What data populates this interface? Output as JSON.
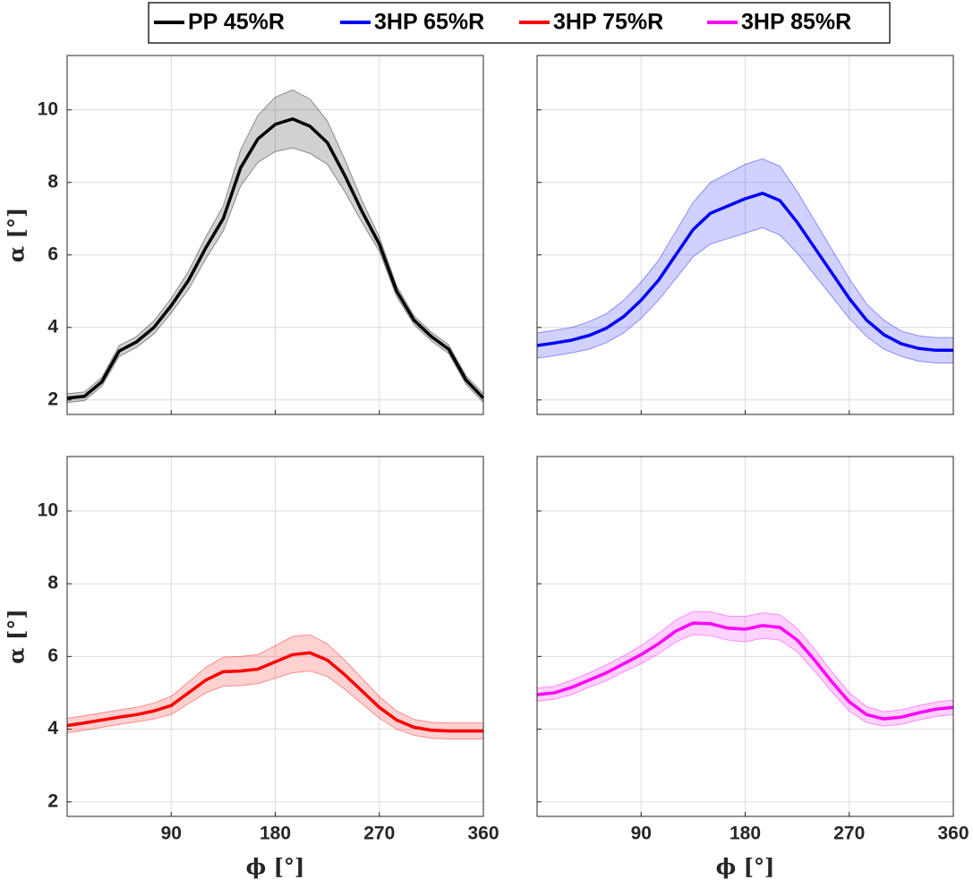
{
  "chart_data": [
    {
      "type": "line",
      "ylabel": "α [°]",
      "x": [
        0,
        15,
        30,
        45,
        60,
        75,
        90,
        105,
        120,
        135,
        150,
        165,
        180,
        195,
        210,
        225,
        240,
        255,
        270,
        285,
        300,
        315,
        330,
        345,
        360
      ],
      "series": [
        {
          "name": "PP 45%R",
          "color": "#000000",
          "values": [
            2.05,
            2.1,
            2.5,
            3.35,
            3.6,
            4.0,
            4.6,
            5.3,
            6.2,
            7.0,
            8.4,
            9.2,
            9.6,
            9.75,
            9.55,
            9.1,
            8.2,
            7.2,
            6.3,
            5.0,
            4.2,
            3.75,
            3.4,
            2.55,
            2.05
          ],
          "upper": [
            2.17,
            2.22,
            2.62,
            3.5,
            3.75,
            4.18,
            4.8,
            5.55,
            6.5,
            7.35,
            8.9,
            9.85,
            10.35,
            10.55,
            10.3,
            9.7,
            8.65,
            7.5,
            6.5,
            5.15,
            4.32,
            3.87,
            3.52,
            2.67,
            2.17
          ],
          "lower": [
            1.93,
            1.98,
            2.38,
            3.2,
            3.45,
            3.82,
            4.4,
            5.05,
            5.9,
            6.65,
            7.9,
            8.55,
            8.85,
            8.95,
            8.8,
            8.5,
            7.75,
            6.9,
            6.1,
            4.85,
            4.08,
            3.63,
            3.28,
            2.43,
            1.93
          ]
        }
      ],
      "xlim": [
        0,
        360
      ],
      "xticks": [
        90,
        180,
        270,
        360
      ],
      "ylim": [
        1.6,
        11.5
      ],
      "yticks": [
        2,
        4,
        6,
        8,
        10
      ],
      "grid": true
    },
    {
      "type": "line",
      "x": [
        0,
        15,
        30,
        45,
        60,
        75,
        90,
        105,
        120,
        135,
        150,
        165,
        180,
        195,
        210,
        225,
        240,
        255,
        270,
        285,
        300,
        315,
        330,
        345,
        360
      ],
      "series": [
        {
          "name": "3HP 65%R",
          "color": "#0000ff",
          "values": [
            3.5,
            3.57,
            3.65,
            3.78,
            3.98,
            4.3,
            4.75,
            5.3,
            6.0,
            6.7,
            7.15,
            7.35,
            7.55,
            7.7,
            7.5,
            6.9,
            6.2,
            5.5,
            4.8,
            4.2,
            3.8,
            3.55,
            3.42,
            3.37,
            3.37
          ],
          "upper": [
            3.85,
            3.92,
            4.0,
            4.16,
            4.38,
            4.75,
            5.25,
            5.85,
            6.65,
            7.45,
            8.0,
            8.25,
            8.5,
            8.65,
            8.45,
            7.75,
            6.95,
            6.15,
            5.35,
            4.65,
            4.2,
            3.9,
            3.77,
            3.72,
            3.72
          ],
          "lower": [
            3.15,
            3.22,
            3.3,
            3.4,
            3.58,
            3.85,
            4.25,
            4.75,
            5.35,
            5.95,
            6.3,
            6.45,
            6.6,
            6.75,
            6.55,
            6.05,
            5.45,
            4.85,
            4.25,
            3.75,
            3.4,
            3.2,
            3.07,
            3.02,
            3.02
          ]
        }
      ],
      "xlim": [
        0,
        360
      ],
      "xticks": [
        90,
        180,
        270,
        360
      ],
      "ylim": [
        1.6,
        11.5
      ],
      "yticks": [
        2,
        4,
        6,
        8,
        10
      ],
      "grid": true
    },
    {
      "type": "line",
      "ylabel": "α [°]",
      "xlabel": "ϕ [°]",
      "x": [
        0,
        15,
        30,
        45,
        60,
        75,
        90,
        105,
        120,
        135,
        150,
        165,
        180,
        195,
        210,
        225,
        240,
        255,
        270,
        285,
        300,
        315,
        330,
        345,
        360
      ],
      "series": [
        {
          "name": "3HP 75%R",
          "color": "#ff0000",
          "values": [
            4.1,
            4.17,
            4.25,
            4.33,
            4.4,
            4.5,
            4.65,
            5.0,
            5.35,
            5.58,
            5.6,
            5.65,
            5.85,
            6.05,
            6.1,
            5.9,
            5.5,
            5.05,
            4.6,
            4.25,
            4.05,
            3.97,
            3.95,
            3.95,
            3.95
          ],
          "upper": [
            4.3,
            4.37,
            4.45,
            4.53,
            4.6,
            4.72,
            4.9,
            5.3,
            5.7,
            5.98,
            6.0,
            6.05,
            6.3,
            6.55,
            6.6,
            6.35,
            5.9,
            5.4,
            4.9,
            4.5,
            4.27,
            4.19,
            4.17,
            4.17,
            4.17
          ],
          "lower": [
            3.9,
            3.97,
            4.05,
            4.13,
            4.2,
            4.28,
            4.4,
            4.7,
            5.0,
            5.18,
            5.2,
            5.25,
            5.4,
            5.55,
            5.6,
            5.45,
            5.1,
            4.7,
            4.3,
            4.0,
            3.83,
            3.75,
            3.73,
            3.73,
            3.73
          ]
        }
      ],
      "xlim": [
        0,
        360
      ],
      "xticks": [
        90,
        180,
        270,
        360
      ],
      "ylim": [
        1.6,
        11.5
      ],
      "yticks": [
        2,
        4,
        6,
        8,
        10
      ],
      "grid": true
    },
    {
      "type": "line",
      "xlabel": "ϕ [°]",
      "x": [
        0,
        15,
        30,
        45,
        60,
        75,
        90,
        105,
        120,
        135,
        150,
        165,
        180,
        195,
        210,
        225,
        240,
        255,
        270,
        285,
        300,
        315,
        330,
        345,
        360
      ],
      "series": [
        {
          "name": "3HP 85%R",
          "color": "#ff00ff",
          "values": [
            4.95,
            5.0,
            5.15,
            5.35,
            5.55,
            5.8,
            6.05,
            6.35,
            6.7,
            6.92,
            6.9,
            6.78,
            6.75,
            6.85,
            6.8,
            6.45,
            5.9,
            5.3,
            4.75,
            4.4,
            4.28,
            4.33,
            4.45,
            4.55,
            4.6
          ],
          "upper": [
            5.13,
            5.18,
            5.35,
            5.55,
            5.77,
            6.02,
            6.3,
            6.63,
            7.0,
            7.24,
            7.23,
            7.11,
            7.1,
            7.2,
            7.15,
            6.77,
            6.2,
            5.58,
            5.0,
            4.62,
            4.48,
            4.53,
            4.65,
            4.75,
            4.8
          ],
          "lower": [
            4.77,
            4.82,
            4.95,
            5.15,
            5.33,
            5.58,
            5.8,
            6.07,
            6.4,
            6.6,
            6.57,
            6.45,
            6.4,
            6.5,
            6.45,
            6.13,
            5.6,
            5.02,
            4.5,
            4.18,
            4.08,
            4.13,
            4.25,
            4.35,
            4.4
          ]
        }
      ],
      "xlim": [
        0,
        360
      ],
      "xticks": [
        90,
        180,
        270,
        360
      ],
      "ylim": [
        1.6,
        11.5
      ],
      "yticks": [
        2,
        4,
        6,
        8,
        10
      ],
      "grid": true
    }
  ]
}
